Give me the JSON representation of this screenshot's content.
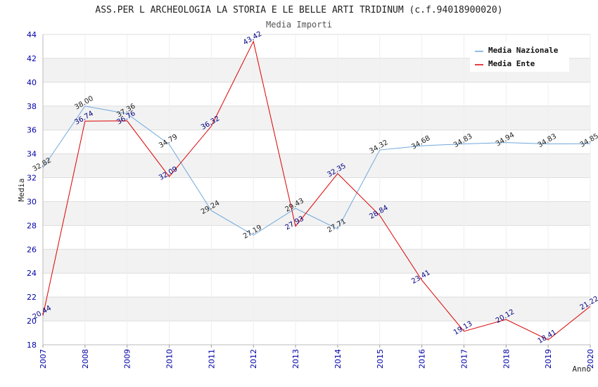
{
  "chart_data": {
    "type": "line",
    "title": "ASS.PER L ARCHEOLOGIA LA STORIA E LE BELLE ARTI TRIDINUM (c.f.94018900020)",
    "subtitle": "Media Importi",
    "xlabel": "Anno",
    "ylabel": "Media",
    "ylim": [
      18,
      44
    ],
    "yticks": [
      "18",
      "20",
      "22",
      "24",
      "26",
      "28",
      "30",
      "32",
      "34",
      "36",
      "38",
      "40",
      "42",
      "44"
    ],
    "categories": [
      "2007",
      "2008",
      "2009",
      "2010",
      "2011",
      "2012",
      "2013",
      "2014",
      "2015",
      "2016",
      "2017",
      "2018",
      "2019",
      "2020"
    ],
    "grid": true,
    "legend_position": "top-right",
    "series": [
      {
        "name": "Media Nazionale",
        "color": "#6fa8dc",
        "values": [
          32.82,
          38.0,
          37.36,
          34.79,
          29.24,
          27.19,
          29.43,
          27.71,
          34.32,
          34.68,
          34.83,
          34.94,
          34.83,
          34.85
        ],
        "labels": [
          "32.82",
          "38.00",
          "37.36",
          "34.79",
          "29.24",
          "27.19",
          "29.43",
          "27.71",
          "34.32",
          "34.68",
          "34.83",
          "34.94",
          "34.83",
          "34.85"
        ]
      },
      {
        "name": "Media Ente",
        "color": "#dd0000",
        "values": [
          20.44,
          36.74,
          36.76,
          32.09,
          36.32,
          43.42,
          27.93,
          32.35,
          28.84,
          23.41,
          19.13,
          20.12,
          18.41,
          21.22
        ],
        "labels": [
          "20.44",
          "36.74",
          "36.76",
          "32.09",
          "36.32",
          "43.42",
          "27.93",
          "32.35",
          "28.84",
          "23.41",
          "19.13",
          "20.12",
          "18.41",
          "21.22"
        ]
      }
    ]
  }
}
